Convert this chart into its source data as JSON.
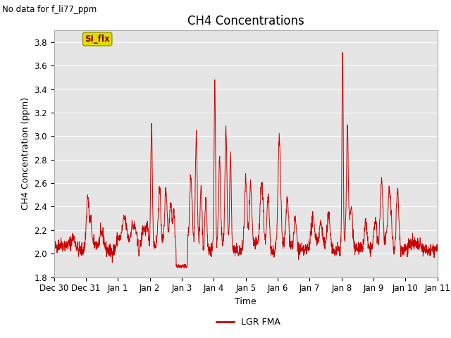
{
  "title": "CH4 Concentrations",
  "xlabel": "Time",
  "ylabel": "CH4 Concentration (ppm)",
  "upper_left_text": "No data for f_li77_ppm",
  "legend_label": "LGR FMA",
  "legend_color": "#cc0000",
  "line_color": "#cc0000",
  "background_color": "#e5e5e5",
  "fig_background": "#ffffff",
  "ylim": [
    1.8,
    3.9
  ],
  "yticks": [
    1.8,
    2.0,
    2.2,
    2.4,
    2.6,
    2.8,
    3.0,
    3.2,
    3.4,
    3.6,
    3.8
  ],
  "xtick_labels": [
    "Dec 30",
    "Dec 31",
    "Jan 1",
    "Jan 2",
    "Jan 3",
    "Jan 4",
    "Jan 5",
    "Jan 6",
    "Jan 7",
    "Jan 8",
    "Jan 9",
    "Jan 10",
    "Jan 11"
  ],
  "si_flx_label": "SI_flx",
  "si_flx_bg": "#dddd00",
  "si_flx_text_color": "#8b0000",
  "title_fontsize": 12,
  "label_fontsize": 9,
  "tick_fontsize": 8.5
}
